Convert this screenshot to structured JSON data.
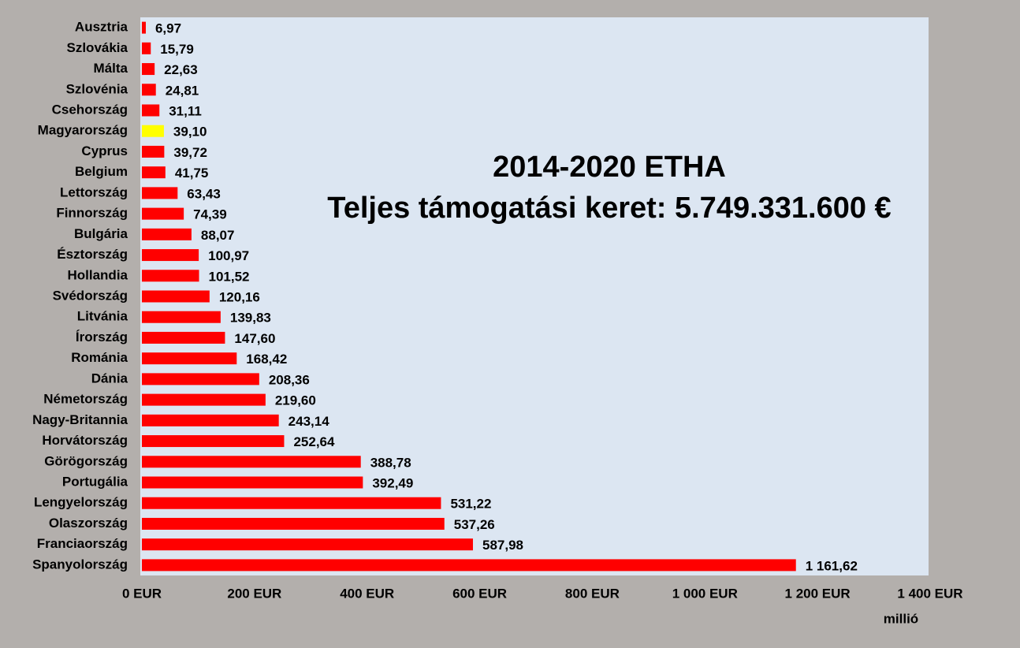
{
  "chart_data": {
    "type": "bar",
    "orientation": "horizontal",
    "title": [
      "2014-2020 ETHA",
      "Teljes támogatási keret: 5.749.331.600 €"
    ],
    "title_color": "#0b50d8",
    "x_label": "millió",
    "categories": [
      "Ausztria",
      "Szlovákia",
      "Málta",
      "Szlovénia",
      "Csehország",
      "Magyarország",
      "Cyprus",
      "Belgium",
      "Lettország",
      "Finnország",
      "Bulgária",
      "Észtország",
      "Hollandia",
      "Svédország",
      "Litvánia",
      "Írország",
      "Románia",
      "Dánia",
      "Németország",
      "Nagy-Britannia",
      "Horvátország",
      "Görögország",
      "Portugália",
      "Lengyelország",
      "Olaszország",
      "Franciaország",
      "Spanyolország"
    ],
    "values": [
      6.97,
      15.79,
      22.63,
      24.81,
      31.11,
      39.1,
      39.72,
      41.75,
      63.43,
      74.39,
      88.07,
      100.97,
      101.52,
      120.16,
      139.83,
      147.6,
      168.42,
      208.36,
      219.6,
      243.14,
      252.64,
      388.78,
      392.49,
      531.22,
      537.26,
      587.98,
      1161.62
    ],
    "value_labels": [
      "6,97",
      "15,79",
      "22,63",
      "24,81",
      "31,11",
      "39,10",
      "39,72",
      "41,75",
      "63,43",
      "74,39",
      "88,07",
      "100,97",
      "101,52",
      "120,16",
      "139,83",
      "147,60",
      "168,42",
      "208,36",
      "219,60",
      "243,14",
      "252,64",
      "388,78",
      "392,49",
      "531,22",
      "537,26",
      "587,98",
      "1 161,62"
    ],
    "colors": [
      "#ff0000",
      "#ff0000",
      "#ff0000",
      "#ff0000",
      "#ff0000",
      "#ffff00",
      "#ff0000",
      "#ff0000",
      "#ff0000",
      "#ff0000",
      "#ff0000",
      "#ff0000",
      "#ff0000",
      "#ff0000",
      "#ff0000",
      "#ff0000",
      "#ff0000",
      "#ff0000",
      "#ff0000",
      "#ff0000",
      "#ff0000",
      "#ff0000",
      "#ff0000",
      "#ff0000",
      "#ff0000",
      "#ff0000",
      "#ff0000"
    ],
    "xlim": [
      0,
      1400
    ],
    "xticks": [
      {
        "value": 0,
        "label": "0 EUR"
      },
      {
        "value": 200,
        "label": "200 EUR"
      },
      {
        "value": 400,
        "label": "400 EUR"
      },
      {
        "value": 600,
        "label": "600 EUR"
      },
      {
        "value": 800,
        "label": "800 EUR"
      },
      {
        "value": 1000,
        "label": "1 000 EUR"
      },
      {
        "value": 1200,
        "label": "1 200 EUR"
      },
      {
        "value": 1400,
        "label": "1 400 EUR"
      }
    ],
    "grid": false
  }
}
